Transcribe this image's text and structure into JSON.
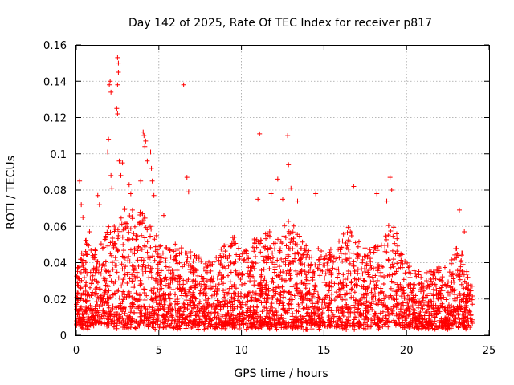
{
  "chart_data": {
    "type": "scatter",
    "title": "Day 142 of 2025, Rate Of TEC Index for receiver p817",
    "xlabel": "GPS time / hours",
    "ylabel": "ROTI / TECUs",
    "xlim": [
      0,
      25
    ],
    "ylim": [
      0,
      0.16
    ],
    "x_ticks": [
      "0",
      "5",
      "10",
      "15",
      "20",
      "25"
    ],
    "y_ticks": [
      "0",
      "0.02",
      "0.04",
      "0.06",
      "0.08",
      "0.1",
      "0.12",
      "0.14",
      "0.16"
    ],
    "grid": true,
    "marker": "plus",
    "color": "#ff0000",
    "envelope": {
      "x": [
        0,
        0.5,
        1,
        1.5,
        2,
        2.5,
        3,
        3.5,
        4,
        4.5,
        5,
        5.5,
        6,
        6.5,
        7,
        7.5,
        8,
        8.5,
        9,
        9.5,
        10,
        10.5,
        11,
        11.5,
        12,
        12.5,
        13,
        13.5,
        14,
        14.5,
        15,
        15.5,
        16,
        16.5,
        17,
        17.5,
        18,
        18.5,
        19,
        19.5,
        20,
        20.5,
        21,
        21.5,
        22,
        22.5,
        23,
        23.5,
        24
      ],
      "typical_max": [
        0.03,
        0.05,
        0.045,
        0.045,
        0.055,
        0.06,
        0.065,
        0.06,
        0.065,
        0.06,
        0.045,
        0.045,
        0.045,
        0.045,
        0.04,
        0.04,
        0.035,
        0.04,
        0.045,
        0.05,
        0.045,
        0.045,
        0.05,
        0.055,
        0.05,
        0.055,
        0.06,
        0.05,
        0.045,
        0.045,
        0.045,
        0.04,
        0.05,
        0.055,
        0.05,
        0.045,
        0.045,
        0.05,
        0.06,
        0.05,
        0.035,
        0.03,
        0.03,
        0.03,
        0.035,
        0.03,
        0.045,
        0.04,
        0.02
      ]
    },
    "outliers": [
      {
        "x": 0.2,
        "y": 0.085
      },
      {
        "x": 0.3,
        "y": 0.072
      },
      {
        "x": 0.4,
        "y": 0.065
      },
      {
        "x": 0.8,
        "y": 0.057
      },
      {
        "x": 1.3,
        "y": 0.077
      },
      {
        "x": 1.4,
        "y": 0.072
      },
      {
        "x": 1.9,
        "y": 0.101
      },
      {
        "x": 1.95,
        "y": 0.108
      },
      {
        "x": 2.0,
        "y": 0.138
      },
      {
        "x": 2.05,
        "y": 0.14
      },
      {
        "x": 2.1,
        "y": 0.134
      },
      {
        "x": 2.1,
        "y": 0.088
      },
      {
        "x": 2.15,
        "y": 0.081
      },
      {
        "x": 2.5,
        "y": 0.153
      },
      {
        "x": 2.55,
        "y": 0.15
      },
      {
        "x": 2.55,
        "y": 0.145
      },
      {
        "x": 2.5,
        "y": 0.138
      },
      {
        "x": 2.45,
        "y": 0.125
      },
      {
        "x": 2.5,
        "y": 0.122
      },
      {
        "x": 2.6,
        "y": 0.096
      },
      {
        "x": 2.7,
        "y": 0.088
      },
      {
        "x": 2.8,
        "y": 0.095
      },
      {
        "x": 3.2,
        "y": 0.083
      },
      {
        "x": 3.3,
        "y": 0.078
      },
      {
        "x": 3.4,
        "y": 0.069
      },
      {
        "x": 3.9,
        "y": 0.085
      },
      {
        "x": 4.05,
        "y": 0.112
      },
      {
        "x": 4.1,
        "y": 0.11
      },
      {
        "x": 4.2,
        "y": 0.107
      },
      {
        "x": 4.15,
        "y": 0.104
      },
      {
        "x": 4.3,
        "y": 0.096
      },
      {
        "x": 4.5,
        "y": 0.101
      },
      {
        "x": 4.55,
        "y": 0.092
      },
      {
        "x": 4.6,
        "y": 0.085
      },
      {
        "x": 4.7,
        "y": 0.077
      },
      {
        "x": 5.3,
        "y": 0.066
      },
      {
        "x": 6.5,
        "y": 0.138
      },
      {
        "x": 6.7,
        "y": 0.087
      },
      {
        "x": 6.8,
        "y": 0.079
      },
      {
        "x": 11.1,
        "y": 0.111
      },
      {
        "x": 12.8,
        "y": 0.11
      },
      {
        "x": 12.85,
        "y": 0.094
      },
      {
        "x": 12.2,
        "y": 0.086
      },
      {
        "x": 11.0,
        "y": 0.075
      },
      {
        "x": 11.8,
        "y": 0.078
      },
      {
        "x": 12.5,
        "y": 0.075
      },
      {
        "x": 13.0,
        "y": 0.081
      },
      {
        "x": 13.4,
        "y": 0.074
      },
      {
        "x": 14.5,
        "y": 0.078
      },
      {
        "x": 16.8,
        "y": 0.082
      },
      {
        "x": 18.2,
        "y": 0.078
      },
      {
        "x": 19.0,
        "y": 0.087
      },
      {
        "x": 19.1,
        "y": 0.08
      },
      {
        "x": 18.8,
        "y": 0.074
      },
      {
        "x": 23.2,
        "y": 0.069
      },
      {
        "x": 23.5,
        "y": 0.057
      }
    ]
  }
}
